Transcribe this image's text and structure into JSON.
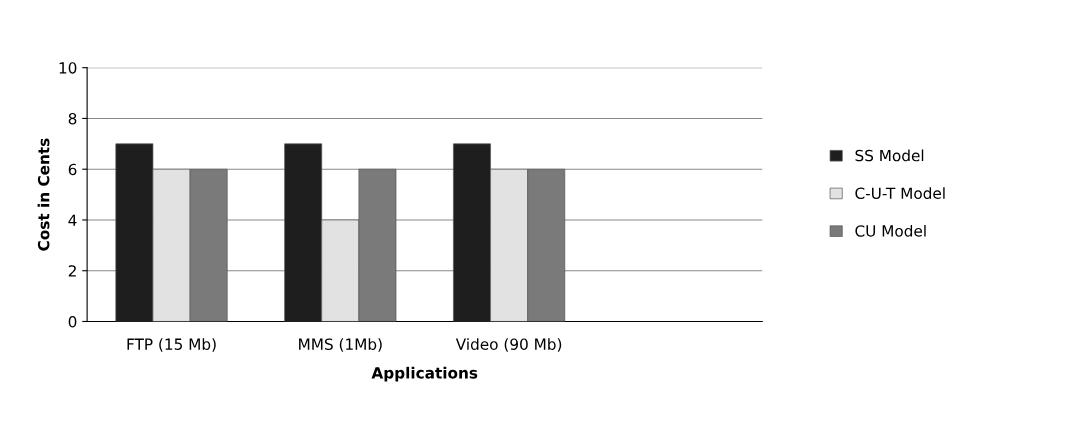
{
  "chart_data": {
    "type": "bar",
    "xlabel": "Applications",
    "ylabel": "Cost in Cents",
    "categories": [
      "FTP (15 Mb)",
      "MMS (1Mb)",
      "Video (90 Mb)",
      null
    ],
    "series": [
      {
        "name": "SS Model",
        "color": "#1e1e1e",
        "values": [
          7,
          7,
          7,
          null
        ]
      },
      {
        "name": "C-U-T Model",
        "color": "#e2e2e2",
        "values": [
          6,
          4,
          6,
          null
        ]
      },
      {
        "name": "CU Model",
        "color": "#7a7a7a",
        "values": [
          6,
          6,
          6,
          null
        ]
      }
    ],
    "ylim": [
      0,
      10
    ],
    "yticks": [
      0,
      2,
      4,
      6,
      8,
      10
    ],
    "grid": "y",
    "legend": "right"
  }
}
